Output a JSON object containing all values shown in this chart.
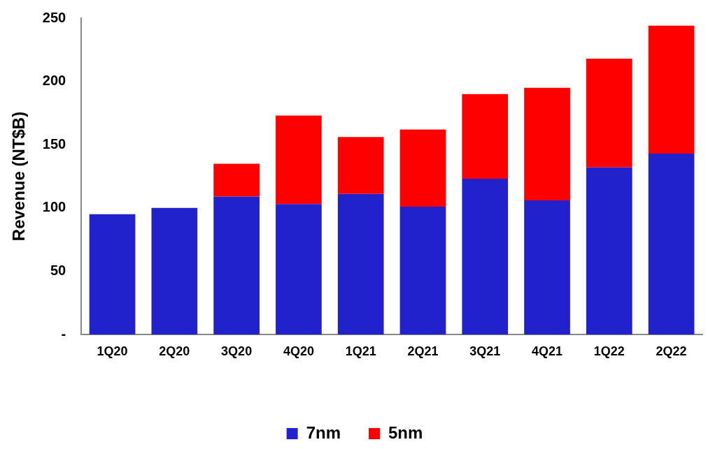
{
  "chart_data": {
    "type": "bar",
    "stacked": true,
    "ylabel": "Revenue (NT$B)",
    "categories": [
      "1Q20",
      "2Q20",
      "3Q20",
      "4Q20",
      "1Q21",
      "2Q21",
      "3Q21",
      "4Q21",
      "1Q22",
      "2Q22"
    ],
    "series": [
      {
        "name": "7nm",
        "color": "#2222cc",
        "values": [
          95,
          100,
          109,
          103,
          111,
          101,
          123,
          106,
          132,
          143
        ]
      },
      {
        "name": "5nm",
        "color": "#ff0000",
        "values": [
          null,
          null,
          26,
          70,
          45,
          61,
          67,
          89,
          86,
          101
        ]
      }
    ],
    "ylim": [
      0,
      250
    ],
    "yticks": [
      {
        "value": 0,
        "label": "-"
      },
      50,
      100,
      150,
      200,
      250
    ],
    "grid": false,
    "legend": "bottom"
  }
}
